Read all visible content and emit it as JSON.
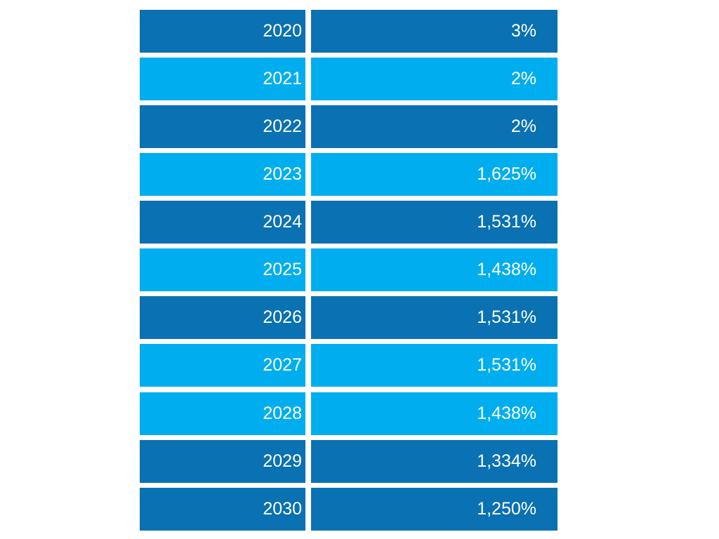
{
  "chart_data": {
    "type": "table",
    "categories": [
      "2020",
      "2021",
      "2022",
      "2023",
      "2024",
      "2025",
      "2026",
      "2027",
      "2028",
      "2029",
      "2030"
    ],
    "values": [
      "3%",
      "2%",
      "2%",
      "1,625%",
      "1,531%",
      "1,438%",
      "1,531%",
      "1,531%",
      "1,438%",
      "1,334%",
      "1,250%"
    ],
    "row_colors": [
      "dark",
      "light",
      "dark",
      "light",
      "dark",
      "light",
      "dark",
      "light",
      "light",
      "dark",
      "dark"
    ],
    "palette": {
      "dark": "#0a71b2",
      "light": "#00aeef",
      "text": "#ffffff",
      "background": "#ffffff"
    },
    "layout": {
      "group_break_before_index": 8,
      "legend": "none",
      "grid": "off",
      "value_alignment": "right"
    }
  }
}
